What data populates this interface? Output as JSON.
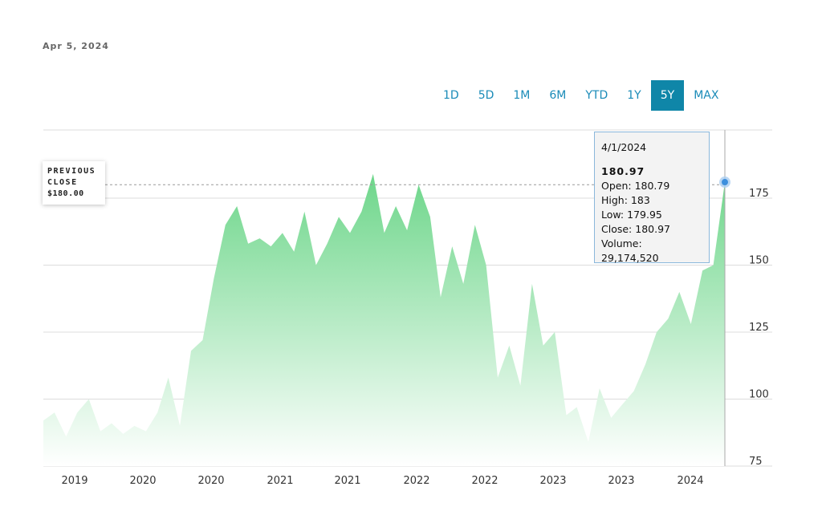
{
  "header": {
    "date": "Apr 5, 2024"
  },
  "ranges": [
    "1D",
    "5D",
    "1M",
    "6M",
    "YTD",
    "1Y",
    "5Y",
    "MAX"
  ],
  "active_range": "5Y",
  "previous_close": {
    "label_line1": "PREVIOUS",
    "label_line2": "CLOSE",
    "value": "$180.00"
  },
  "tooltip": {
    "date": "4/1/2024",
    "price": "180.97",
    "open": "Open: 180.79",
    "high": "High: 183",
    "low": "Low: 179.95",
    "close": "Close: 180.97",
    "volume": "Volume: 29,174,520"
  },
  "colors": {
    "fill_top": "#6dd68a",
    "fill_bottom": "#ffffff",
    "accent": "#0f86a8"
  },
  "chart_data": {
    "type": "area",
    "ylim": [
      75,
      185
    ],
    "y_ticks": [
      75,
      100,
      125,
      150,
      175
    ],
    "x_tick_labels": [
      "2019",
      "2020",
      "2020",
      "2021",
      "2021",
      "2022",
      "2022",
      "2023",
      "2023",
      "2024"
    ],
    "previous_close": 180.0,
    "highlight": {
      "date": "4/1/2024",
      "value": 180.97
    },
    "points": [
      [
        "2019-04-01",
        92
      ],
      [
        "2019-05-01",
        95
      ],
      [
        "2019-06-01",
        86
      ],
      [
        "2019-07-01",
        95
      ],
      [
        "2019-08-01",
        100
      ],
      [
        "2019-09-01",
        88
      ],
      [
        "2019-10-01",
        91
      ],
      [
        "2019-11-01",
        87
      ],
      [
        "2019-12-01",
        90
      ],
      [
        "2020-01-01",
        88
      ],
      [
        "2020-02-01",
        95
      ],
      [
        "2020-03-01",
        108
      ],
      [
        "2020-04-01",
        90
      ],
      [
        "2020-05-01",
        118
      ],
      [
        "2020-06-01",
        122
      ],
      [
        "2020-07-01",
        145
      ],
      [
        "2020-08-01",
        165
      ],
      [
        "2020-09-01",
        172
      ],
      [
        "2020-10-01",
        158
      ],
      [
        "2020-11-01",
        160
      ],
      [
        "2020-12-01",
        157
      ],
      [
        "2021-01-01",
        162
      ],
      [
        "2021-02-01",
        155
      ],
      [
        "2021-03-01",
        170
      ],
      [
        "2021-04-01",
        150
      ],
      [
        "2021-05-01",
        158
      ],
      [
        "2021-06-01",
        168
      ],
      [
        "2021-07-01",
        162
      ],
      [
        "2021-08-01",
        170
      ],
      [
        "2021-09-01",
        184
      ],
      [
        "2021-10-01",
        162
      ],
      [
        "2021-11-01",
        172
      ],
      [
        "2021-12-01",
        163
      ],
      [
        "2022-01-01",
        180
      ],
      [
        "2022-02-01",
        168
      ],
      [
        "2022-03-01",
        138
      ],
      [
        "2022-04-01",
        157
      ],
      [
        "2022-05-01",
        143
      ],
      [
        "2022-06-01",
        165
      ],
      [
        "2022-07-01",
        150
      ],
      [
        "2022-08-01",
        108
      ],
      [
        "2022-09-01",
        120
      ],
      [
        "2022-10-01",
        105
      ],
      [
        "2022-11-01",
        143
      ],
      [
        "2022-12-01",
        120
      ],
      [
        "2023-01-01",
        125
      ],
      [
        "2023-02-01",
        94
      ],
      [
        "2023-03-01",
        97
      ],
      [
        "2023-04-01",
        84
      ],
      [
        "2023-05-01",
        104
      ],
      [
        "2023-06-01",
        93
      ],
      [
        "2023-07-01",
        98
      ],
      [
        "2023-08-01",
        103
      ],
      [
        "2023-09-01",
        113
      ],
      [
        "2023-10-01",
        125
      ],
      [
        "2023-11-01",
        130
      ],
      [
        "2023-12-01",
        140
      ],
      [
        "2024-01-01",
        128
      ],
      [
        "2024-02-01",
        148
      ],
      [
        "2024-03-01",
        150
      ],
      [
        "2024-04-01",
        181
      ]
    ]
  }
}
